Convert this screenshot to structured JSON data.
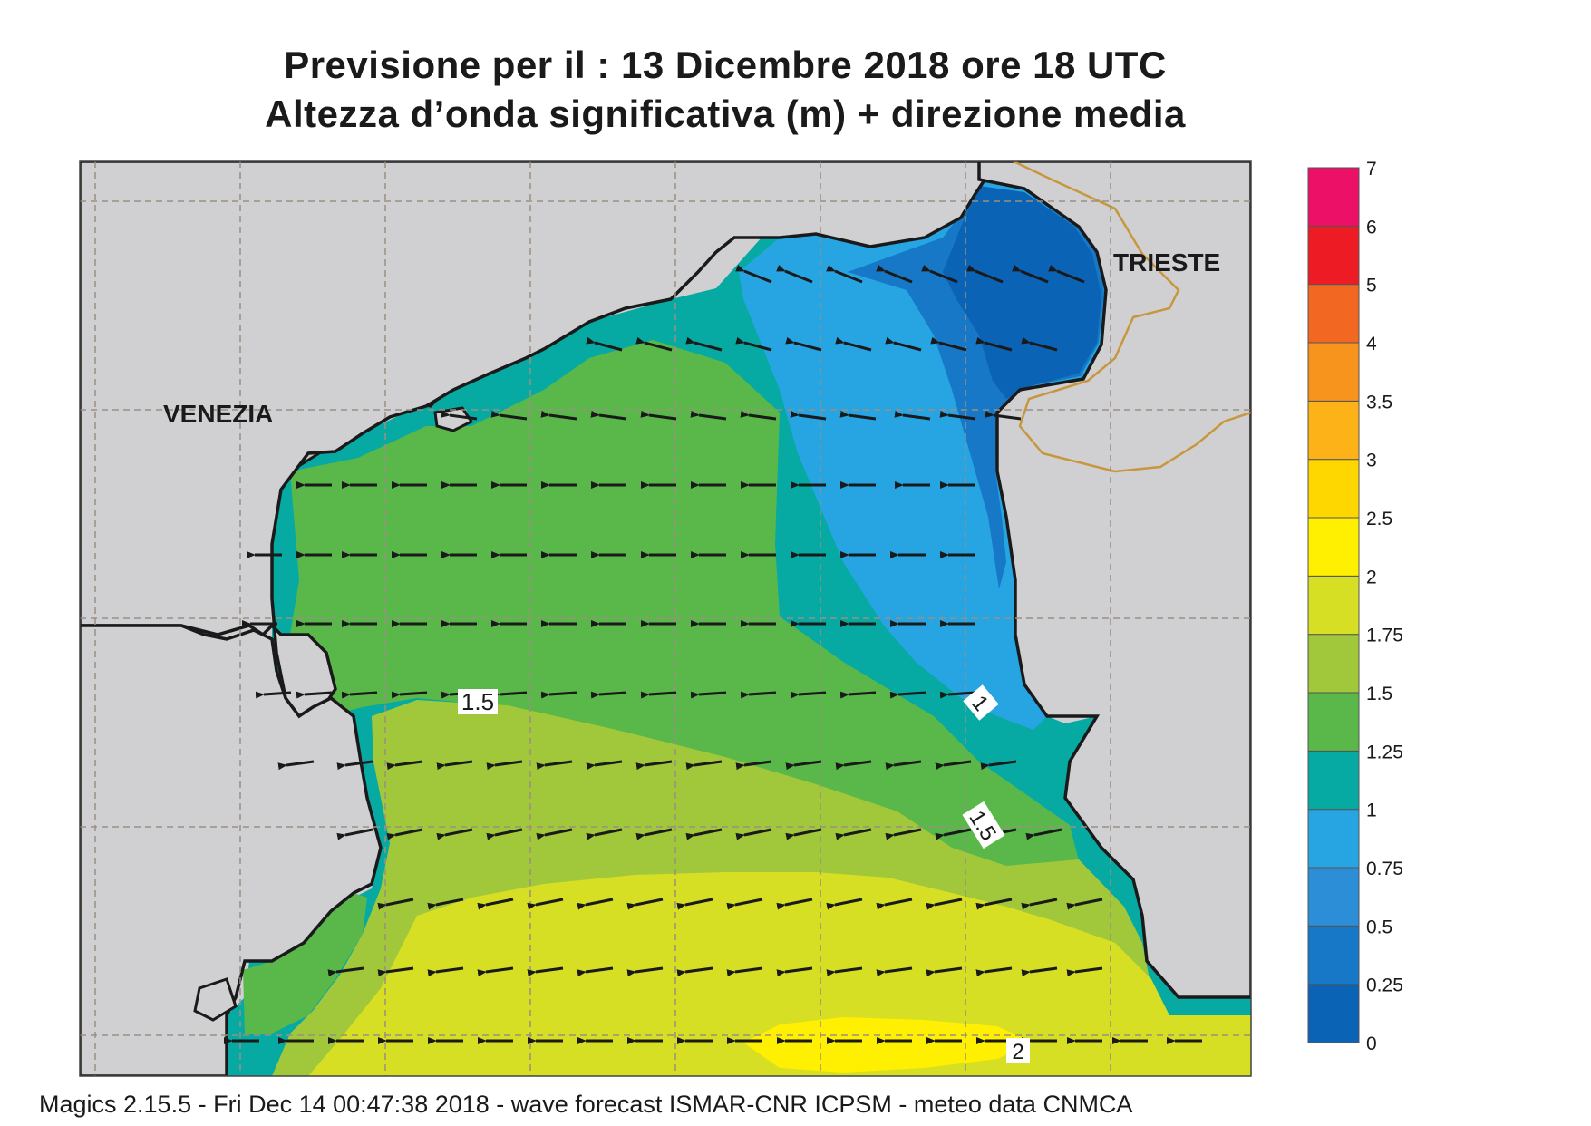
{
  "header": {
    "title_line1": "Previsione per il  :  13 Dicembre  2018   ore 18 UTC",
    "title_line2": "Altezza d’onda significativa (m) + direzione media"
  },
  "map": {
    "place_labels": [
      "VENEZIA",
      "TRIESTE"
    ],
    "contour_labels": [
      "1.5",
      "1",
      "1.5",
      "2"
    ],
    "land_color": "#d0d0d3",
    "coast_color": "#1a1a1a",
    "border_color": "#c8963c",
    "arrow_direction": "predominantly westward (from east to west)"
  },
  "legend": {
    "title": "",
    "ticks": [
      "0",
      "0.25",
      "0.5",
      "0.75",
      "1",
      "1.25",
      "1.5",
      "1.75",
      "2",
      "2.5",
      "3",
      "3.5",
      "4",
      "5",
      "6",
      "7"
    ],
    "colors": [
      "#0a63b5",
      "#1778c8",
      "#2b8ed6",
      "#27a5e3",
      "#06aaa2",
      "#5ab84a",
      "#a1c83a",
      "#d6df24",
      "#ffef00",
      "#ffd700",
      "#fdb317",
      "#f7941d",
      "#f26722",
      "#ed1c24",
      "#ec1066"
    ]
  },
  "footer": {
    "text": "Magics 2.15.5 - Fri Dec 14 00:47:38 2018 - wave forecast  ISMAR-CNR  ICPSM - meteo data   CNMCA"
  }
}
